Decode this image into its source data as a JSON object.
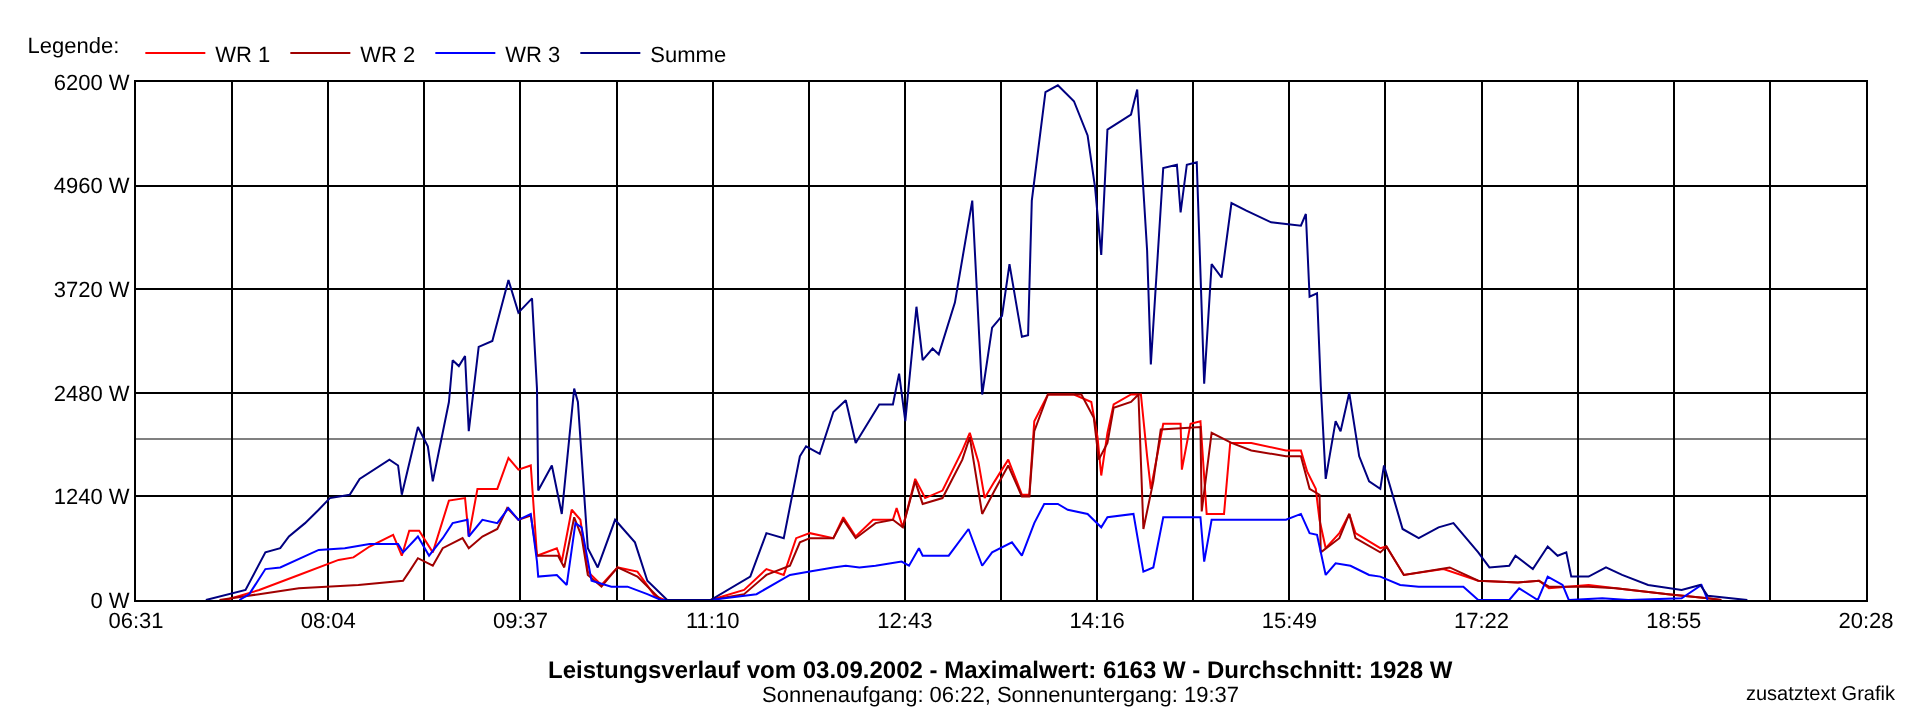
{
  "chart_data": {
    "type": "line",
    "title": "Leistungsverlauf vom 03.09.2002 - Maximalwert: 6163 W - Durchschnitt: 1928 W",
    "subtitle": "Sonnenaufgang: 06:22, Sonnenuntergang: 19:37",
    "annotations": [
      "zusatztext Grafik"
    ],
    "legend_title": "Legende:",
    "legend": "top left",
    "grid": true,
    "marker": "none",
    "line_style": "solid",
    "xlim": [
      6.5167,
      20.4667
    ],
    "xticks": [
      {
        "value": 6.5167,
        "label": "06:31"
      },
      {
        "value": 7.2917,
        "label": null
      },
      {
        "value": 8.0667,
        "label": "08:04"
      },
      {
        "value": 8.8417,
        "label": null
      },
      {
        "value": 9.6167,
        "label": "09:37"
      },
      {
        "value": 10.3917,
        "label": null
      },
      {
        "value": 11.1667,
        "label": "11:10"
      },
      {
        "value": 11.9417,
        "label": null
      },
      {
        "value": 12.7167,
        "label": "12:43"
      },
      {
        "value": 13.4917,
        "label": null
      },
      {
        "value": 14.2667,
        "label": "14:16"
      },
      {
        "value": 15.0417,
        "label": null
      },
      {
        "value": 15.8167,
        "label": "15:49"
      },
      {
        "value": 16.5917,
        "label": null
      },
      {
        "value": 17.3667,
        "label": "17:22"
      },
      {
        "value": 18.1417,
        "label": null
      },
      {
        "value": 18.9167,
        "label": "18:55"
      },
      {
        "value": 19.6917,
        "label": null
      },
      {
        "value": 20.4667,
        "label": "20:28"
      }
    ],
    "ylim": [
      0,
      6200
    ],
    "yticks": [
      {
        "value": 0,
        "label": "0 W"
      },
      {
        "value": 1240,
        "label": "1240 W"
      },
      {
        "value": 2480,
        "label": "2480 W"
      },
      {
        "value": 3720,
        "label": "3720 W"
      },
      {
        "value": 4960,
        "label": "4960 W"
      },
      {
        "value": 6200,
        "label": "6200 W"
      }
    ],
    "ref_lines": [
      {
        "axis": "y",
        "value": 1928,
        "color": "#808080"
      }
    ],
    "series": [
      {
        "name": "WR 1",
        "color": "#ff0000",
        "x": [
          7.24,
          7.51,
          7.83,
          8.15,
          8.27,
          8.4,
          8.59,
          8.66,
          8.72,
          8.8,
          8.91,
          9.04,
          9.17,
          9.2,
          9.27,
          9.43,
          9.52,
          9.6,
          9.7,
          9.75,
          9.91,
          9.95,
          10.03,
          10.1,
          10.16,
          10.27,
          10.4,
          10.56,
          10.7,
          10.78,
          11.15,
          11.42,
          11.6,
          11.74,
          11.84,
          11.95,
          12.14,
          12.22,
          12.32,
          12.46,
          12.62,
          12.65,
          12.7,
          12.8,
          12.88,
          13.02,
          13.18,
          13.24,
          13.31,
          13.36,
          13.44,
          13.55,
          13.66,
          13.72,
          13.76,
          13.87,
          14.08,
          14.22,
          14.27,
          14.3,
          14.35,
          14.4,
          14.54,
          14.62,
          14.67,
          14.7,
          14.8,
          14.94,
          14.95,
          15.02,
          15.1,
          15.15,
          15.29,
          15.34,
          15.51,
          15.79,
          15.91,
          15.96,
          16.03,
          16.06,
          16.11,
          16.22,
          16.3,
          16.35,
          16.55,
          16.6,
          16.74,
          17.06,
          17.34,
          17.66,
          17.83,
          17.91,
          18.23,
          18.45,
          18.87,
          19.19,
          19.3
        ],
        "values": [
          0,
          120,
          300,
          480,
          510,
          640,
          780,
          530,
          830,
          830,
          570,
          1190,
          1220,
          760,
          1330,
          1330,
          1700,
          1560,
          1610,
          530,
          620,
          460,
          1080,
          960,
          340,
          180,
          390,
          340,
          50,
          0,
          0,
          120,
          370,
          300,
          740,
          800,
          740,
          990,
          760,
          960,
          960,
          1100,
          870,
          1450,
          1220,
          1310,
          1790,
          2000,
          1650,
          1220,
          1420,
          1680,
          1260,
          1260,
          2140,
          2460,
          2460,
          2370,
          1950,
          1490,
          2000,
          2340,
          2460,
          2460,
          1720,
          1330,
          2110,
          2110,
          1560,
          2110,
          2140,
          1030,
          1030,
          1880,
          1880,
          1790,
          1790,
          1540,
          1330,
          960,
          620,
          800,
          1030,
          800,
          620,
          640,
          300,
          370,
          230,
          210,
          230,
          140,
          180,
          140,
          70,
          20,
          0
        ]
      },
      {
        "name": "WR 2",
        "color": "#a00000",
        "x": [
          7.19,
          7.51,
          7.83,
          8.31,
          8.67,
          8.72,
          8.79,
          8.91,
          8.99,
          9.15,
          9.2,
          9.31,
          9.43,
          9.51,
          9.6,
          9.7,
          9.75,
          9.92,
          9.97,
          10.05,
          10.11,
          10.16,
          10.27,
          10.4,
          10.56,
          10.75,
          11.15,
          11.42,
          11.6,
          11.79,
          11.87,
          11.95,
          12.14,
          12.22,
          12.32,
          12.48,
          12.62,
          12.7,
          12.8,
          12.86,
          13.02,
          13.18,
          13.24,
          13.34,
          13.44,
          13.55,
          13.66,
          13.72,
          13.76,
          13.87,
          14.14,
          14.24,
          14.28,
          14.35,
          14.4,
          14.54,
          14.6,
          14.64,
          14.72,
          14.78,
          15.1,
          15.11,
          15.19,
          15.35,
          15.51,
          15.79,
          15.91,
          15.98,
          16.06,
          16.07,
          16.22,
          16.3,
          16.35,
          16.55,
          16.6,
          16.74,
          17.11,
          17.34,
          17.66,
          17.83,
          17.91,
          18.23,
          18.45,
          18.87,
          19.19,
          19.3
        ],
        "values": [
          0,
          70,
          140,
          180,
          230,
          340,
          500,
          410,
          620,
          740,
          620,
          760,
          850,
          1100,
          960,
          1010,
          530,
          530,
          390,
          990,
          760,
          300,
          160,
          390,
          280,
          0,
          0,
          70,
          300,
          410,
          690,
          740,
          740,
          960,
          740,
          920,
          960,
          870,
          1420,
          1150,
          1220,
          1680,
          1950,
          1030,
          1310,
          1610,
          1240,
          1240,
          2020,
          2460,
          2460,
          2180,
          1680,
          1880,
          2300,
          2370,
          2460,
          850,
          1420,
          2040,
          2070,
          1060,
          2000,
          1880,
          1790,
          1720,
          1720,
          1330,
          1260,
          570,
          740,
          1030,
          740,
          570,
          640,
          300,
          390,
          230,
          210,
          230,
          160,
          160,
          140,
          70,
          20,
          0
        ]
      },
      {
        "name": "WR 3",
        "color": "#0000ff",
        "x": [
          7.35,
          7.43,
          7.56,
          7.68,
          7.99,
          8.2,
          8.4,
          8.63,
          8.67,
          8.79,
          8.88,
          8.99,
          9.07,
          9.19,
          9.2,
          9.31,
          9.43,
          9.52,
          9.6,
          9.7,
          9.75,
          9.76,
          9.91,
          9.99,
          10.06,
          10.11,
          10.19,
          10.35,
          10.48,
          10.64,
          10.75,
          11.15,
          11.52,
          11.79,
          11.95,
          12.14,
          12.24,
          12.35,
          12.48,
          12.69,
          12.75,
          12.83,
          12.86,
          13.07,
          13.23,
          13.34,
          13.42,
          13.58,
          13.66,
          13.76,
          13.84,
          13.95,
          14.03,
          14.19,
          14.3,
          14.35,
          14.56,
          14.64,
          14.72,
          14.8,
          15.1,
          15.13,
          15.19,
          15.79,
          15.91,
          15.98,
          16.04,
          16.11,
          16.19,
          16.31,
          16.46,
          16.55,
          16.71,
          16.86,
          17.22,
          17.34,
          17.59,
          17.67,
          17.82,
          17.9,
          18.02,
          18.07,
          18.34,
          18.55,
          18.98,
          19.14,
          19.19
        ],
        "values": [
          0,
          70,
          370,
          390,
          600,
          620,
          670,
          670,
          570,
          760,
          530,
          740,
          920,
          960,
          760,
          960,
          920,
          1100,
          960,
          1030,
          460,
          280,
          300,
          180,
          920,
          870,
          230,
          160,
          160,
          70,
          0,
          0,
          70,
          300,
          340,
          390,
          410,
          390,
          410,
          460,
          410,
          620,
          530,
          530,
          850,
          410,
          570,
          690,
          530,
          920,
          1150,
          1150,
          1080,
          1030,
          870,
          990,
          1030,
          340,
          390,
          990,
          990,
          460,
          960,
          960,
          1030,
          800,
          780,
          300,
          440,
          410,
          300,
          280,
          180,
          160,
          160,
          0,
          0,
          140,
          0,
          280,
          180,
          0,
          20,
          0,
          20,
          180,
          0
        ]
      },
      {
        "name": "Summe",
        "color": "#000080",
        "x": [
          7.08,
          7.4,
          7.56,
          7.68,
          7.75,
          7.88,
          7.99,
          8.08,
          8.24,
          8.32,
          8.56,
          8.63,
          8.66,
          8.79,
          8.87,
          8.91,
          9.04,
          9.07,
          9.12,
          9.17,
          9.2,
          9.28,
          9.39,
          9.52,
          9.6,
          9.71,
          9.75,
          9.76,
          9.87,
          9.95,
          10.05,
          10.08,
          10.16,
          10.24,
          10.38,
          10.54,
          10.64,
          10.8,
          11.15,
          11.47,
          11.6,
          11.74,
          11.87,
          11.92,
          12.03,
          12.14,
          12.24,
          12.32,
          12.51,
          12.62,
          12.67,
          12.72,
          12.81,
          12.86,
          12.94,
          12.99,
          13.12,
          13.26,
          13.34,
          13.42,
          13.5,
          13.56,
          13.66,
          13.71,
          13.74,
          13.85,
          13.95,
          14.08,
          14.19,
          14.25,
          14.3,
          14.35,
          14.54,
          14.59,
          14.67,
          14.7,
          14.8,
          14.91,
          14.94,
          14.99,
          15.07,
          15.13,
          15.19,
          15.27,
          15.35,
          15.47,
          15.67,
          15.79,
          15.91,
          15.95,
          15.98,
          16.04,
          16.07,
          16.11,
          16.19,
          16.23,
          16.3,
          16.38,
          16.46,
          16.55,
          16.58,
          16.73,
          16.86,
          17.02,
          17.14,
          17.34,
          17.43,
          17.59,
          17.64,
          17.78,
          17.9,
          17.98,
          18.05,
          18.09,
          18.23,
          18.37,
          18.5,
          18.71,
          18.98,
          19.13,
          19.19,
          19.51
        ],
        "values": [
          0,
          120,
          570,
          620,
          760,
          920,
          1080,
          1220,
          1260,
          1450,
          1680,
          1610,
          1260,
          2070,
          1840,
          1420,
          2370,
          2870,
          2800,
          2920,
          2020,
          3030,
          3100,
          3830,
          3440,
          3610,
          2530,
          1310,
          1610,
          1030,
          2530,
          2370,
          620,
          390,
          960,
          690,
          230,
          0,
          0,
          280,
          800,
          740,
          1720,
          1840,
          1750,
          2250,
          2390,
          1880,
          2340,
          2340,
          2710,
          2140,
          3510,
          2870,
          3010,
          2940,
          3560,
          4780,
          2460,
          3260,
          3400,
          4020,
          3150,
          3170,
          4780,
          6080,
          6160,
          5970,
          5560,
          4940,
          4130,
          5630,
          5810,
          6110,
          4180,
          2820,
          5170,
          5210,
          4640,
          5210,
          5240,
          2590,
          4020,
          3860,
          4750,
          4660,
          4520,
          4500,
          4480,
          4620,
          3630,
          3670,
          2570,
          1450,
          2140,
          2020,
          2480,
          1720,
          1420,
          1330,
          1610,
          850,
          740,
          870,
          920,
          570,
          390,
          410,
          530,
          370,
          640,
          530,
          570,
          280,
          280,
          390,
          300,
          180,
          120,
          180,
          50,
          0
        ]
      }
    ]
  }
}
